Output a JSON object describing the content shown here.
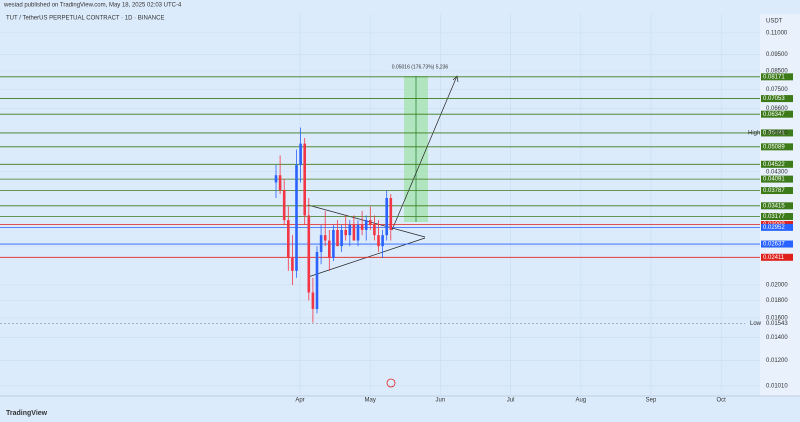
{
  "header": {
    "published": "wesiad published on TradingView.com, May 18, 2025 02:03 UTC-4",
    "symbol": "TUT / TetherUS PERPETUAL CONTRACT · 1D · BINANCE",
    "currency": "USDT"
  },
  "footer": {
    "brand": "TradingView"
  },
  "chart_data": {
    "type": "candlestick",
    "log_scale": true,
    "grid": true,
    "up_color": "#2962ff",
    "down_color": "#f23645",
    "ylim": [
      0.0095,
      0.12
    ],
    "yticks": [
      {
        "value": 0.11,
        "label": "0.11000"
      },
      {
        "value": 0.095,
        "label": "0.09500"
      },
      {
        "value": 0.085,
        "label": "0.08500"
      },
      {
        "value": 0.075,
        "label": "0.07500"
      },
      {
        "value": 0.066,
        "label": "0.06600"
      },
      {
        "value": 0.043,
        "label": "0.04300"
      },
      {
        "value": 0.026,
        "label": "0.02600"
      },
      {
        "value": 0.02,
        "label": "0.02000"
      },
      {
        "value": 0.018,
        "label": "0.01800"
      },
      {
        "value": 0.016,
        "label": "0.01600"
      },
      {
        "value": 0.014,
        "label": "0.01400"
      },
      {
        "value": 0.012,
        "label": "0.01200"
      },
      {
        "value": 0.0101,
        "label": "0.01010"
      }
    ],
    "months": [
      "Apr",
      "May",
      "Jun",
      "Jul",
      "Aug",
      "Sep",
      "Oct"
    ],
    "categories": [
      null,
      null,
      null,
      null,
      null,
      null,
      null,
      null,
      null,
      null,
      null,
      null,
      null,
      null,
      null,
      null,
      null,
      null,
      null,
      null,
      null,
      null,
      null,
      null,
      null,
      null,
      null,
      null,
      null
    ],
    "open": [
      0.04,
      0.042,
      0.038,
      0.031,
      0.024,
      0.022,
      0.045,
      0.052,
      0.032,
      0.019,
      0.017,
      0.025,
      0.028,
      0.027,
      0.024,
      0.029,
      0.026,
      0.029,
      0.028,
      0.03,
      0.027,
      0.03,
      0.029,
      0.031,
      0.03,
      0.028,
      0.026,
      0.028,
      0.036
    ],
    "high": [
      0.045,
      0.048,
      0.041,
      0.034,
      0.028,
      0.05,
      0.058,
      0.054,
      0.036,
      0.021,
      0.026,
      0.03,
      0.033,
      0.029,
      0.03,
      0.031,
      0.03,
      0.032,
      0.031,
      0.032,
      0.031,
      0.033,
      0.032,
      0.034,
      0.032,
      0.031,
      0.029,
      0.038,
      0.037
    ],
    "low": [
      0.036,
      0.037,
      0.03,
      0.022,
      0.02,
      0.021,
      0.04,
      0.03,
      0.018,
      0.0155,
      0.0165,
      0.023,
      0.026,
      0.022,
      0.0235,
      0.026,
      0.025,
      0.027,
      0.026,
      0.027,
      0.026,
      0.028,
      0.027,
      0.029,
      0.027,
      0.025,
      0.024,
      0.027,
      0.027
    ],
    "close": [
      0.042,
      0.038,
      0.031,
      0.024,
      0.022,
      0.045,
      0.052,
      0.032,
      0.019,
      0.017,
      0.025,
      0.028,
      0.027,
      0.024,
      0.029,
      0.026,
      0.029,
      0.028,
      0.03,
      0.027,
      0.03,
      0.029,
      0.031,
      0.03,
      0.028,
      0.026,
      0.028,
      0.036,
      0.029
    ],
    "levels": [
      {
        "value": 0.08171,
        "color": "#3d7a1a"
      },
      {
        "value": 0.07053,
        "color": "#3d7a1a"
      },
      {
        "value": 0.06347,
        "color": "#3d7a1a"
      },
      {
        "value": 0.05591,
        "color": "#3d7a1a"
      },
      {
        "value": 0.05089,
        "color": "#3d7a1a"
      },
      {
        "value": 0.04522,
        "color": "#3d7a1a"
      },
      {
        "value": 0.04091,
        "color": "#3d7a1a"
      },
      {
        "value": 0.03787,
        "color": "#3d7a1a"
      },
      {
        "value": 0.03415,
        "color": "#3d7a1a"
      },
      {
        "value": 0.03177,
        "color": "#3d7a1a"
      },
      {
        "value": 0.03009,
        "color": "#e0201b"
      },
      {
        "value": 0.02952,
        "color": "#2962ff"
      },
      {
        "value": 0.02637,
        "color": "#2962ff"
      },
      {
        "value": 0.02411,
        "color": "#e0201b"
      }
    ],
    "high_label": "High",
    "high_value": {
      "value": 0.056,
      "label": "0.05600"
    },
    "low_label": "Low",
    "low_value": 0.01543,
    "annotation": "0.05016 (176.73%) 5,236"
  }
}
